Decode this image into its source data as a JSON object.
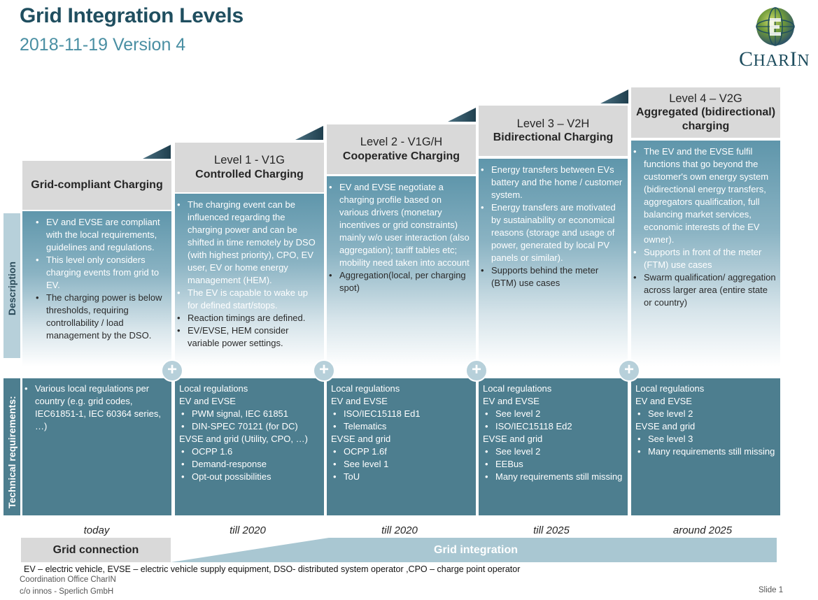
{
  "title": "Grid Integration Levels",
  "subtitle": "2018-11-19 Version 4",
  "logo": {
    "text": "CharIn",
    "icon": "globe-logo-icon"
  },
  "side_labels": {
    "description": "Description",
    "technical": "Technical requirements:"
  },
  "columns": [
    {
      "level": "",
      "name": "Grid-compliant Charging",
      "description": [
        "EV and EVSE are compliant with the local requirements, guidelines and regulations.",
        "This level only considers charging events from grid to EV.",
        "The charging power is below thresholds, requiring controllability / load management by the DSO."
      ],
      "timeline": "today"
    },
    {
      "level": "Level 1 - V1G",
      "name": "Controlled Charging",
      "description": [
        "The charging event can be influenced regarding the charging power and can be shifted in time remotely by DSO (with highest priority), CPO, EV user, EV or home energy management (HEM).",
        "The EV is capable to wake up for defined start/stops.",
        "Reaction timings are defined.",
        "EV/EVSE, HEM consider variable power settings."
      ],
      "timeline": "till 2020"
    },
    {
      "level": "Level 2 - V1G/H",
      "name": "Cooperative Charging",
      "description": [
        "EV and EVSE negotiate a charging profile based on various drivers (monetary incentives or grid constraints) mainly w/o user interaction (also aggregation); tariff tables etc; mobility need taken into account",
        "Aggregation(local, per charging spot)"
      ],
      "timeline": "till 2020"
    },
    {
      "level": "Level 3 – V2H",
      "name": "Bidirectional Charging",
      "description": [
        "Energy transfers between EVs battery and the home / customer system.",
        "Energy transfers are motivated by sustainability or economical reasons (storage and usage of power, generated by local PV panels or similar).",
        "Supports behind the meter (BTM) use cases"
      ],
      "timeline": "till 2025"
    },
    {
      "level": "Level 4 – V2G",
      "name": "Aggregated (bidirectional) charging",
      "description": [
        "The EV and the EVSE fulfil functions that go beyond the customer's own energy system (bidirectional energy transfers, aggregators qualification, full balancing market services, economic interests of the EV owner).",
        "Supports in front of the meter (FTM) use cases",
        "Swarm qualification/ aggregation across larger area (entire state or country)"
      ],
      "timeline": "around 2025"
    }
  ],
  "tech": [
    [
      {
        "t": "bullet",
        "v": "Various local regulations per country (e.g. grid codes, IEC61851-1, IEC 60364 series, …)"
      }
    ],
    [
      {
        "t": "line",
        "v": "Local regulations"
      },
      {
        "t": "line",
        "v": "EV and EVSE"
      },
      {
        "t": "bullet",
        "v": "PWM signal, IEC 61851"
      },
      {
        "t": "bullet",
        "v": "DIN-SPEC 70121 (for DC)"
      },
      {
        "t": "line",
        "v": "EVSE and grid (Utility, CPO, …)"
      },
      {
        "t": "bullet",
        "v": "OCPP 1.6"
      },
      {
        "t": "bullet",
        "v": "Demand-response"
      },
      {
        "t": "bullet",
        "v": "Opt-out possibilities"
      }
    ],
    [
      {
        "t": "line",
        "v": "Local regulations"
      },
      {
        "t": "line",
        "v": "EV and EVSE"
      },
      {
        "t": "bullet",
        "v": "ISO/IEC15118 Ed1"
      },
      {
        "t": "bullet",
        "v": "Telematics"
      },
      {
        "t": "line",
        "v": "EVSE and grid"
      },
      {
        "t": "bullet",
        "v": "OCPP 1.6f"
      },
      {
        "t": "bullet",
        "v": "See level 1"
      },
      {
        "t": "bullet",
        "v": "ToU"
      }
    ],
    [
      {
        "t": "line",
        "v": "Local regulations"
      },
      {
        "t": "line",
        "v": "EV and EVSE"
      },
      {
        "t": "bullet",
        "v": "See level 2"
      },
      {
        "t": "bullet",
        "v": "ISO/IEC15118 Ed2"
      },
      {
        "t": "line",
        "v": "EVSE and grid"
      },
      {
        "t": "bullet",
        "v": "See level 2"
      },
      {
        "t": "bullet",
        "v": "EEBus"
      },
      {
        "t": "bullet",
        "v": "Many requirements still missing"
      }
    ],
    [
      {
        "t": "line",
        "v": "Local regulations"
      },
      {
        "t": "line",
        "v": "EV and EVSE"
      },
      {
        "t": "bullet",
        "v": "See level 2"
      },
      {
        "t": "line",
        "v": "EVSE and grid"
      },
      {
        "t": "bullet",
        "v": "See level 3"
      },
      {
        "t": "bullet",
        "v": "Many requirements still missing"
      }
    ]
  ],
  "plus_symbol": "+",
  "bars": {
    "connection": "Grid connection",
    "integration": "Grid integration"
  },
  "footnote": "EV – electric vehicle, EVSE – electric vehicle supply equipment, DSO- distributed system operator ,CPO – charge point operator",
  "office": [
    "Coordination Office CharIN",
    "c/o innos - Sperlich GmbH"
  ],
  "slide": "Slide 1",
  "colors": {
    "dark_teal": "#4d7e8f",
    "title": "#1f4e5f",
    "subtitle": "#4a8fa3",
    "header_grey": "#d9d9d9",
    "light_blue": "#b7d0da"
  }
}
